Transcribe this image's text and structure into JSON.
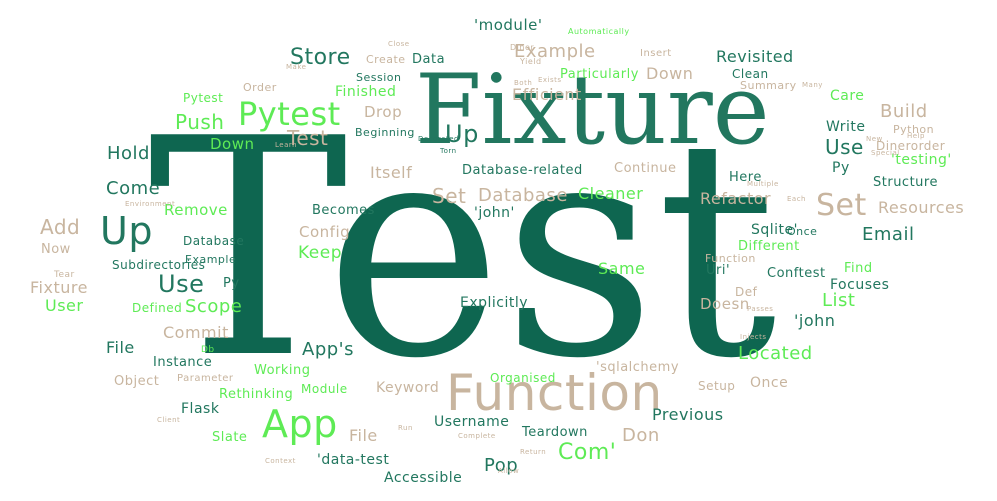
{
  "palette": {
    "teal": "#22775F",
    "dark_teal": "#0E6650",
    "mid_teal": "#3E8770",
    "green": "#5EEB55",
    "tan": "#C8B59F",
    "light_tan": "#D9CABA"
  },
  "words": [
    {
      "text": "Test",
      "color": "dark_teal"
    },
    {
      "text": "Fixture",
      "color": "teal"
    },
    {
      "text": "Function",
      "color": "tan"
    },
    {
      "text": "App",
      "color": "green"
    },
    {
      "text": "Pytest",
      "color": "green"
    },
    {
      "text": "Up",
      "color": "teal"
    },
    {
      "text": "Set",
      "color": "tan"
    },
    {
      "text": "Use",
      "color": "teal"
    },
    {
      "text": "Up",
      "color": "teal"
    },
    {
      "text": "Store",
      "color": "teal"
    },
    {
      "text": "Push",
      "color": "green"
    },
    {
      "text": "Test",
      "color": "tan"
    },
    {
      "text": "Hold",
      "color": "teal"
    },
    {
      "text": "Come",
      "color": "teal"
    },
    {
      "text": "Add",
      "color": "tan"
    },
    {
      "text": "Use",
      "color": "teal"
    },
    {
      "text": "Scope",
      "color": "green"
    },
    {
      "text": "Com'",
      "color": "green"
    },
    {
      "text": "Database",
      "color": "tan"
    },
    {
      "text": "Set",
      "color": "tan"
    },
    {
      "text": "Cleaner",
      "color": "green"
    },
    {
      "text": "Email",
      "color": "teal"
    },
    {
      "text": "List",
      "color": "green"
    },
    {
      "text": "Located",
      "color": "green"
    },
    {
      "text": "Example",
      "color": "tan"
    },
    {
      "text": "Revisited",
      "color": "teal"
    },
    {
      "text": "Build",
      "color": "tan"
    },
    {
      "text": "Care",
      "color": "green"
    },
    {
      "text": "Write",
      "color": "teal"
    },
    {
      "text": "Py",
      "color": "teal"
    },
    {
      "text": "Resources",
      "color": "tan"
    },
    {
      "text": "Refactor",
      "color": "tan"
    },
    {
      "text": "'john",
      "color": "teal"
    },
    {
      "text": "App's",
      "color": "teal"
    },
    {
      "text": "Keep",
      "color": "green"
    },
    {
      "text": "Pop",
      "color": "teal"
    },
    {
      "text": "Don",
      "color": "tan"
    },
    {
      "text": "Previous",
      "color": "teal"
    },
    {
      "text": "Same",
      "color": "green"
    },
    {
      "text": "Fixture",
      "color": "tan"
    },
    {
      "text": "User",
      "color": "green"
    },
    {
      "text": "Commit",
      "color": "tan"
    },
    {
      "text": "File",
      "color": "teal"
    },
    {
      "text": "File",
      "color": "tan"
    },
    {
      "text": "Remove",
      "color": "green"
    },
    {
      "text": "Drop",
      "color": "tan"
    },
    {
      "text": "Efficient",
      "color": "tan"
    },
    {
      "text": "Itself",
      "color": "tan"
    },
    {
      "text": "Down",
      "color": "tan"
    },
    {
      "text": "Down",
      "color": "green"
    },
    {
      "text": "Finished",
      "color": "green"
    },
    {
      "text": "Particularly",
      "color": "green"
    },
    {
      "text": "Data",
      "color": "teal"
    },
    {
      "text": "'module'",
      "color": "teal"
    },
    {
      "text": "Create",
      "color": "tan"
    },
    {
      "text": "Pytest",
      "color": "green"
    },
    {
      "text": "Order",
      "color": "tan"
    },
    {
      "text": "Session",
      "color": "teal"
    },
    {
      "text": "Beginning",
      "color": "teal"
    },
    {
      "text": "Continue",
      "color": "tan"
    },
    {
      "text": "Clean",
      "color": "teal"
    },
    {
      "text": "Summary",
      "color": "tan"
    },
    {
      "text": "Python",
      "color": "tan"
    },
    {
      "text": "Dinerorder",
      "color": "tan"
    },
    {
      "text": "'testing'",
      "color": "green"
    },
    {
      "text": "Structure",
      "color": "teal"
    },
    {
      "text": "Here",
      "color": "teal"
    },
    {
      "text": "Database-related",
      "color": "teal"
    },
    {
      "text": "'john'",
      "color": "teal"
    },
    {
      "text": "Becomes",
      "color": "teal"
    },
    {
      "text": "Config",
      "color": "tan"
    },
    {
      "text": "Database",
      "color": "teal"
    },
    {
      "text": "Example",
      "color": "teal"
    },
    {
      "text": "Subdirectories",
      "color": "teal"
    },
    {
      "text": "Now",
      "color": "tan"
    },
    {
      "text": "Tear",
      "color": "tan"
    },
    {
      "text": "Py",
      "color": "teal"
    },
    {
      "text": "Defined",
      "color": "green"
    },
    {
      "text": "Explicitly",
      "color": "teal"
    },
    {
      "text": "Sqlite'",
      "color": "teal"
    },
    {
      "text": "Once",
      "color": "teal"
    },
    {
      "text": "Different",
      "color": "green"
    },
    {
      "text": "Function",
      "color": "tan"
    },
    {
      "text": "Uri'",
      "color": "teal"
    },
    {
      "text": "Conftest",
      "color": "teal"
    },
    {
      "text": "Find",
      "color": "green"
    },
    {
      "text": "Focuses",
      "color": "teal"
    },
    {
      "text": "Doesn",
      "color": "tan"
    },
    {
      "text": "Def",
      "color": "tan"
    },
    {
      "text": "Instance",
      "color": "teal"
    },
    {
      "text": "Object",
      "color": "tan"
    },
    {
      "text": "Parameter",
      "color": "tan"
    },
    {
      "text": "Working",
      "color": "green"
    },
    {
      "text": "Module",
      "color": "green"
    },
    {
      "text": "Keyword",
      "color": "tan"
    },
    {
      "text": "Organised",
      "color": "green"
    },
    {
      "text": "'sqlalchemy",
      "color": "tan"
    },
    {
      "text": "Setup",
      "color": "tan"
    },
    {
      "text": "Once",
      "color": "tan"
    },
    {
      "text": "Rethinking",
      "color": "green"
    },
    {
      "text": "Flask",
      "color": "teal"
    },
    {
      "text": "Slate",
      "color": "green"
    },
    {
      "text": "Username",
      "color": "teal"
    },
    {
      "text": "Teardown",
      "color": "teal"
    },
    {
      "text": "'data-test",
      "color": "teal"
    },
    {
      "text": "Accessible",
      "color": "teal"
    },
    {
      "text": "Db",
      "color": "green"
    },
    {
      "text": "Insert",
      "color": "tan"
    },
    {
      "text": "Diner",
      "color": "tan"
    },
    {
      "text": "Yield",
      "color": "tan"
    },
    {
      "text": "Automatically",
      "color": "green"
    },
    {
      "text": "Decorated",
      "color": "teal"
    },
    {
      "text": "Torn",
      "color": "teal"
    },
    {
      "text": "Each",
      "color": "tan"
    },
    {
      "text": "Multiple",
      "color": "tan"
    },
    {
      "text": "Environment",
      "color": "tan"
    },
    {
      "text": "Passes",
      "color": "tan"
    },
    {
      "text": "Injects",
      "color": "tan"
    },
    {
      "text": "Run",
      "color": "tan"
    },
    {
      "text": "Complete",
      "color": "tan"
    },
    {
      "text": "Return",
      "color": "tan"
    },
    {
      "text": "Client",
      "color": "tan"
    },
    {
      "text": "Context",
      "color": "tan"
    },
    {
      "text": "New",
      "color": "tan"
    },
    {
      "text": "Help",
      "color": "tan"
    },
    {
      "text": "Learn",
      "color": "tan"
    },
    {
      "text": "Special",
      "color": "tan"
    },
    {
      "text": "Allow",
      "color": "tan"
    },
    {
      "text": "Close",
      "color": "tan"
    },
    {
      "text": "Make",
      "color": "tan"
    },
    {
      "text": "Both",
      "color": "tan"
    },
    {
      "text": "Exists",
      "color": "tan"
    },
    {
      "text": "Many",
      "color": "tan"
    }
  ]
}
